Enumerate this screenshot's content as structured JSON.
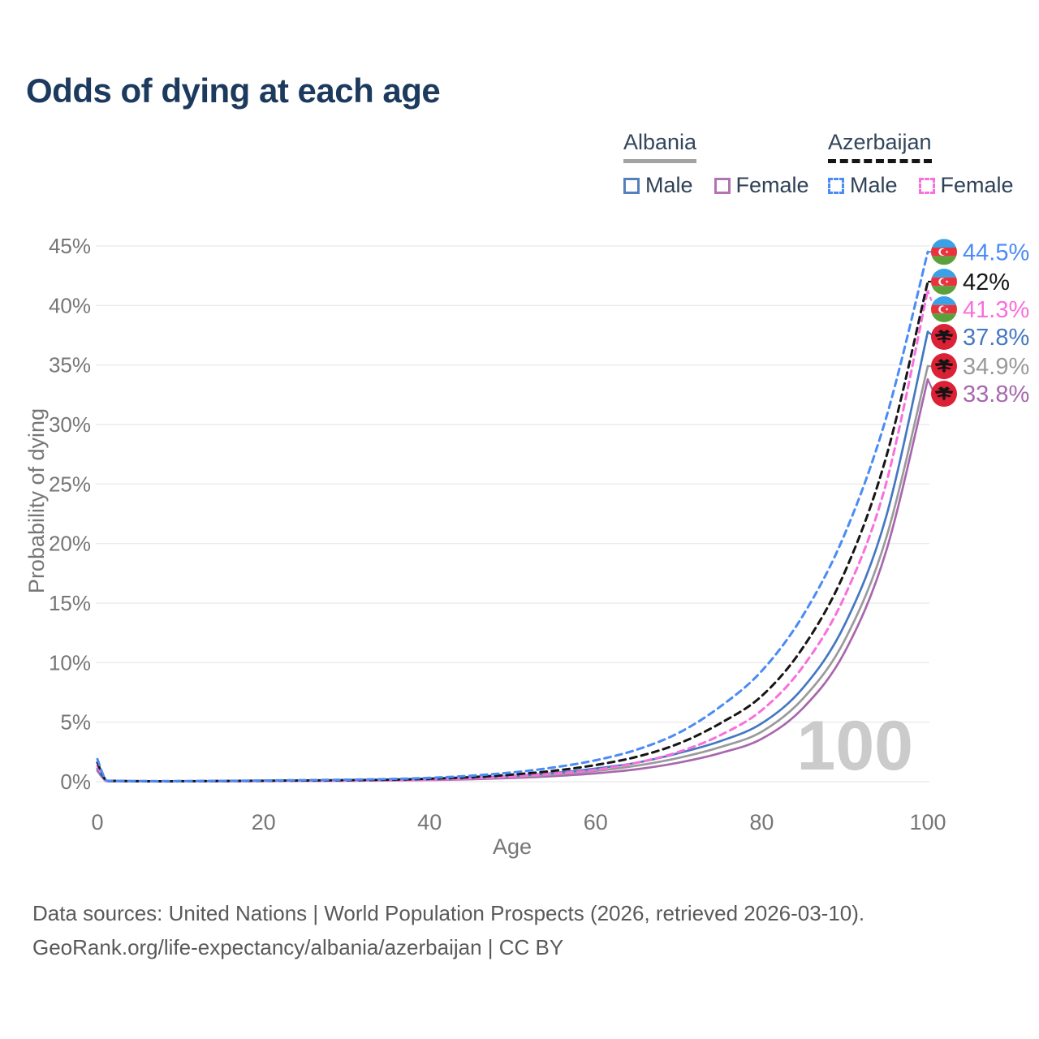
{
  "header": {
    "title": "Odds of dying at each age"
  },
  "legend": {
    "groups": [
      {
        "country": "Albania",
        "underline_style": "solid",
        "items": [
          {
            "label": "Male",
            "color": "#4478c1",
            "dashed": false
          },
          {
            "label": "Female",
            "color": "#a867ad",
            "dashed": false
          }
        ]
      },
      {
        "country": "Azerbaijan",
        "underline_style": "dashed",
        "items": [
          {
            "label": "Male",
            "color": "#4a8bf5",
            "dashed": true
          },
          {
            "label": "Female",
            "color": "#f96fdc",
            "dashed": true
          }
        ]
      }
    ]
  },
  "chart_data": {
    "type": "line",
    "title": "Odds of dying at each age",
    "xlabel": "Age",
    "ylabel": "Probability of dying",
    "xlim": [
      0,
      100
    ],
    "ylim": [
      0,
      45
    ],
    "xticks": [
      0,
      20,
      40,
      60,
      80,
      100
    ],
    "yticks": [
      0,
      5,
      10,
      15,
      20,
      25,
      30,
      35,
      40,
      45
    ],
    "ytick_suffix": "%",
    "grid": "horizontal",
    "watermark_age": "100",
    "x": [
      0,
      1,
      2,
      5,
      10,
      15,
      20,
      25,
      30,
      35,
      40,
      45,
      50,
      55,
      60,
      65,
      70,
      75,
      80,
      85,
      90,
      95,
      100
    ],
    "series": [
      {
        "name": "Azerbaijan Male",
        "country": "azerbaijan",
        "sex": "male",
        "color": "#4a8bf5",
        "dashed": true,
        "end_label": "44.5%",
        "end_value": 44.5,
        "values": [
          1.9,
          0.15,
          0.08,
          0.05,
          0.05,
          0.07,
          0.1,
          0.13,
          0.17,
          0.22,
          0.32,
          0.5,
          0.78,
          1.2,
          1.8,
          2.7,
          4.1,
          6.3,
          9.3,
          14.0,
          20.8,
          30.6,
          44.5
        ]
      },
      {
        "name": "Azerbaijan Both sexes",
        "country": "azerbaijan",
        "sex": "both",
        "color": "#161616",
        "dashed": true,
        "end_label": "42%",
        "end_value": 42,
        "values": [
          1.6,
          0.13,
          0.07,
          0.04,
          0.04,
          0.06,
          0.08,
          0.1,
          0.13,
          0.17,
          0.25,
          0.38,
          0.6,
          0.92,
          1.4,
          2.1,
          3.2,
          4.9,
          7.2,
          11.3,
          17.6,
          27.3,
          42.0
        ]
      },
      {
        "name": "Azerbaijan Female",
        "country": "azerbaijan",
        "sex": "female",
        "color": "#f96fdc",
        "dashed": true,
        "end_label": "41.3%",
        "end_value": 41.3,
        "values": [
          1.3,
          0.11,
          0.06,
          0.04,
          0.03,
          0.04,
          0.06,
          0.07,
          0.09,
          0.12,
          0.18,
          0.28,
          0.44,
          0.68,
          1.0,
          1.6,
          2.5,
          3.9,
          6.0,
          9.7,
          15.6,
          25.1,
          41.3
        ]
      },
      {
        "name": "Albania Male",
        "country": "albania",
        "sex": "male",
        "color": "#4478c1",
        "dashed": false,
        "end_label": "37.8%",
        "end_value": 37.8,
        "values": [
          1.1,
          0.09,
          0.05,
          0.03,
          0.03,
          0.05,
          0.08,
          0.1,
          0.12,
          0.15,
          0.21,
          0.31,
          0.48,
          0.73,
          1.1,
          1.6,
          2.4,
          3.4,
          4.9,
          7.9,
          13.2,
          22.3,
          37.8
        ]
      },
      {
        "name": "Albania Both sexes",
        "country": "albania",
        "sex": "both",
        "color": "#9a9a9a",
        "dashed": false,
        "end_label": "34.9%",
        "end_value": 34.9,
        "values": [
          1.0,
          0.08,
          0.04,
          0.03,
          0.03,
          0.04,
          0.06,
          0.08,
          0.1,
          0.13,
          0.18,
          0.26,
          0.4,
          0.6,
          0.9,
          1.35,
          2.0,
          2.9,
          4.2,
          7.0,
          11.9,
          20.5,
          34.9
        ]
      },
      {
        "name": "Albania Female",
        "country": "albania",
        "sex": "female",
        "color": "#a867ad",
        "dashed": false,
        "end_label": "33.8%",
        "end_value": 33.8,
        "values": [
          0.9,
          0.07,
          0.04,
          0.02,
          0.02,
          0.03,
          0.05,
          0.06,
          0.08,
          0.1,
          0.14,
          0.2,
          0.31,
          0.47,
          0.7,
          1.05,
          1.6,
          2.4,
          3.6,
          6.2,
          10.9,
          19.4,
          33.8
        ]
      }
    ],
    "legend_position": "top-right"
  },
  "flags": {
    "azerbaijan": {
      "blue": "#3ba1e6",
      "red": "#e8323e",
      "green": "#5aa13c",
      "emblem": "#ffffff"
    },
    "albania": {
      "red": "#dc2035",
      "eagle": "#141414"
    }
  },
  "style_colors": {
    "title": "#1c3a5e",
    "axis_text": "#767676",
    "gridline": "#ebebeb",
    "watermark": "#cbcbcb",
    "footer_text": "#595959"
  },
  "footer": {
    "line1": "Data sources: United Nations | World Population Prospects (2026, retrieved 2026-03-10).",
    "line2": "GeoRank.org/life-expectancy/albania/azerbaijan | CC BY"
  }
}
